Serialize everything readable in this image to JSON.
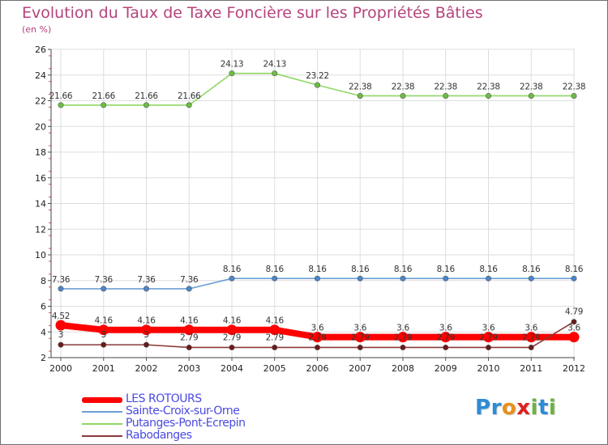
{
  "title": "Evolution du Taux de Taxe Foncière sur les Propriétés Bâties",
  "y_unit": "(en %)",
  "brand": {
    "letters": [
      "P",
      "r",
      "o",
      "x",
      "i",
      "t",
      "i"
    ],
    "colors": [
      "#2e8bd6",
      "#2e8bd6",
      "#e8911a",
      "#e02020",
      "#6cb33f",
      "#2e8bd6",
      "#6cb33f"
    ]
  },
  "chart_data": {
    "type": "line",
    "title": "Evolution du Taux de Taxe Foncière sur les Propriétés Bâties",
    "ylabel": "(en %)",
    "xlabel": "",
    "ylim": [
      2,
      26
    ],
    "yticks": [
      2,
      4,
      6,
      8,
      10,
      12,
      14,
      16,
      18,
      20,
      22,
      24,
      26
    ],
    "categories": [
      "2000",
      "2001",
      "2002",
      "2003",
      "2004",
      "2005",
      "2006",
      "2007",
      "2008",
      "2009",
      "2010",
      "2011",
      "2012"
    ],
    "series": [
      {
        "name": "Putanges-Pont-Ecrepin",
        "color": "#8fd866",
        "marker": "#6cbf3f",
        "values": [
          21.66,
          21.66,
          21.66,
          21.66,
          24.13,
          24.13,
          23.22,
          22.38,
          22.38,
          22.38,
          22.38,
          22.38,
          22.38
        ],
        "labels": [
          "21.66",
          "21.66",
          "21.66",
          "21.66",
          "24.13",
          "24.13",
          "23.22",
          "22.38",
          "22.38",
          "22.38",
          "22.38",
          "22.38",
          "22.38"
        ]
      },
      {
        "name": "Sainte-Croix-sur-Orne",
        "color": "#6c9fd6",
        "marker": "#4b86c9",
        "values": [
          7.36,
          7.36,
          7.36,
          7.36,
          8.16,
          8.16,
          8.16,
          8.16,
          8.16,
          8.16,
          8.16,
          8.16,
          8.16
        ],
        "labels": [
          "7.36",
          "7.36",
          "7.36",
          "7.36",
          "8.16",
          "8.16",
          "8.16",
          "8.16",
          "8.16",
          "8.16",
          "8.16",
          "8.16",
          "8.16"
        ]
      },
      {
        "name": "LES ROTOURS",
        "color": "#ff0000",
        "marker": "#ff0000",
        "values": [
          4.52,
          4.16,
          4.16,
          4.16,
          4.16,
          4.16,
          3.6,
          3.6,
          3.6,
          3.6,
          3.6,
          3.6,
          3.6
        ],
        "labels": [
          "4.52",
          "4.16",
          "4.16",
          "4.16",
          "4.16",
          "4.16",
          "3.6",
          "3.6",
          "3.6",
          "3.6",
          "3.6",
          "3.6",
          "3.6"
        ]
      },
      {
        "name": "Rabodanges",
        "color": "#8b3a3a",
        "marker": "#6b1a1a",
        "values": [
          3,
          3,
          3,
          2.79,
          2.79,
          2.79,
          2.79,
          2.79,
          2.79,
          2.79,
          2.79,
          2.79,
          4.79
        ],
        "labels": [
          "3",
          "3",
          "3",
          "2.79",
          "2.79",
          "2.79",
          "2.79",
          "2.79",
          "2.79",
          "2.79",
          "2.79",
          "2.79",
          "4.79"
        ]
      }
    ],
    "legend": [
      {
        "name": "LES ROTOURS",
        "color": "#ff0000"
      },
      {
        "name": "Sainte-Croix-sur-Orne",
        "color": "#6c9fd6"
      },
      {
        "name": "Putanges-Pont-Ecrepin",
        "color": "#8fd866"
      },
      {
        "name": "Rabodanges",
        "color": "#8b3a3a"
      }
    ]
  }
}
